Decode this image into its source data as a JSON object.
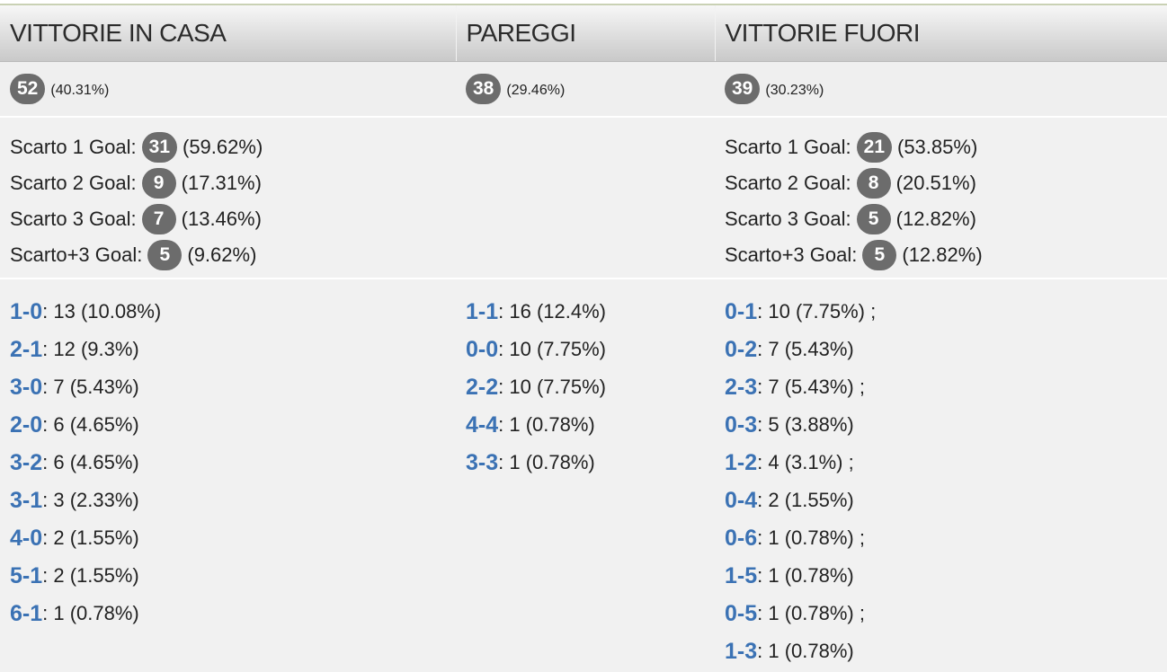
{
  "columns": [
    {
      "header": "VITTORIE IN CASA",
      "summary": {
        "count": 52,
        "percent": "(40.31%)"
      },
      "margins": [
        {
          "label": "Scarto 1 Goal:",
          "count": 31,
          "percent": "(59.62%)"
        },
        {
          "label": "Scarto 2 Goal:",
          "count": 9,
          "percent": "(17.31%)"
        },
        {
          "label": "Scarto 3 Goal:",
          "count": 7,
          "percent": "(13.46%)"
        },
        {
          "label": "Scarto+3 Goal:",
          "count": 5,
          "percent": "(9.62%)"
        }
      ],
      "scores": [
        {
          "score": "1-0",
          "text": ": 13 (10.08%)"
        },
        {
          "score": "2-1",
          "text": ": 12 (9.3%)"
        },
        {
          "score": "3-0",
          "text": ": 7 (5.43%)"
        },
        {
          "score": "2-0",
          "text": ": 6 (4.65%)"
        },
        {
          "score": "3-2",
          "text": ": 6 (4.65%)"
        },
        {
          "score": "3-1",
          "text": ": 3 (2.33%)"
        },
        {
          "score": "4-0",
          "text": ": 2 (1.55%)"
        },
        {
          "score": "5-1",
          "text": ": 2 (1.55%)"
        },
        {
          "score": "6-1",
          "text": ": 1 (0.78%)"
        }
      ]
    },
    {
      "header": "PAREGGI",
      "summary": {
        "count": 38,
        "percent": "(29.46%)"
      },
      "margins": [],
      "scores": [
        {
          "score": "1-1",
          "text": ": 16 (12.4%)"
        },
        {
          "score": "0-0",
          "text": ": 10 (7.75%)"
        },
        {
          "score": "2-2",
          "text": ": 10 (7.75%)"
        },
        {
          "score": "4-4",
          "text": ": 1 (0.78%)"
        },
        {
          "score": "3-3",
          "text": ": 1 (0.78%)"
        }
      ]
    },
    {
      "header": "VITTORIE FUORI",
      "summary": {
        "count": 39,
        "percent": "(30.23%)"
      },
      "margins": [
        {
          "label": "Scarto 1 Goal:",
          "count": 21,
          "percent": "(53.85%)"
        },
        {
          "label": "Scarto 2 Goal:",
          "count": 8,
          "percent": "(20.51%)"
        },
        {
          "label": "Scarto 3 Goal:",
          "count": 5,
          "percent": "(12.82%)"
        },
        {
          "label": "Scarto+3 Goal:",
          "count": 5,
          "percent": "(12.82%)"
        }
      ],
      "scores": [
        {
          "score": "0-1",
          "text": ": 10 (7.75%) ;"
        },
        {
          "score": "0-2",
          "text": ": 7 (5.43%)"
        },
        {
          "score": "2-3",
          "text": ": 7 (5.43%) ;"
        },
        {
          "score": "0-3",
          "text": ": 5 (3.88%)"
        },
        {
          "score": "1-2",
          "text": ": 4 (3.1%) ;"
        },
        {
          "score": "0-4",
          "text": ": 2 (1.55%)"
        },
        {
          "score": "0-6",
          "text": ": 1 (0.78%) ;"
        },
        {
          "score": "1-5",
          "text": ": 1 (0.78%)"
        },
        {
          "score": "0-5",
          "text": ": 1 (0.78%) ;"
        },
        {
          "score": "1-3",
          "text": ": 1 (0.78%)"
        }
      ]
    }
  ]
}
